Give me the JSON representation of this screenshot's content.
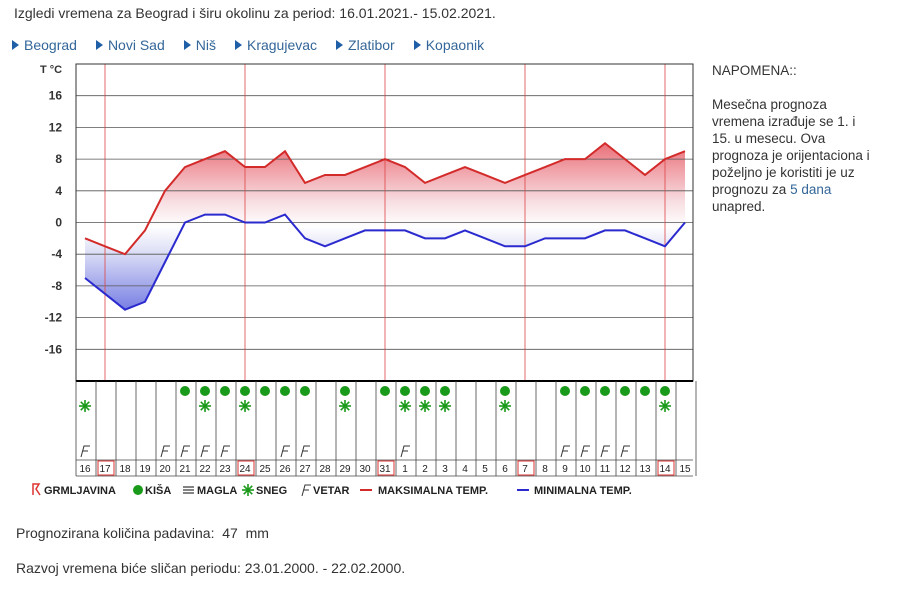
{
  "header": {
    "title": "Izgledi vremena za Beograd i širu okolinu za period: 16.01.2021.- 15.02.2021."
  },
  "cities": [
    {
      "label": "Beograd"
    },
    {
      "label": "Novi Sad"
    },
    {
      "label": "Niš"
    },
    {
      "label": "Kragujevac"
    },
    {
      "label": "Zlatibor"
    },
    {
      "label": "Kopaonik"
    }
  ],
  "note": {
    "heading": "NAPOMENA::",
    "text_before": "Mesečna prognoza vremena izrađuje se 1. i 15. u mesecu. Ova prognoza je orijentaciona i poželjno je koristiti je uz prognozu za ",
    "link": "5 dana",
    "text_after": " unapred."
  },
  "legend": {
    "storm": "GRMLJAVINA",
    "rain": "KIŠA",
    "fog": "MAGLA",
    "snow": "SNEG",
    "wind": "VETAR",
    "max": "MAKSIMALNA TEMP.",
    "min": "MINIMALNA TEMP."
  },
  "colors": {
    "max": "#d32a2a",
    "min": "#2a2acf",
    "rain": "#1a9a1a",
    "snow": "#1a9a1a",
    "grid": "#555555",
    "axis": "#000000"
  },
  "chart_data": {
    "type": "line",
    "ylabel": "T °C",
    "ylim": [
      -20,
      20
    ],
    "yticks": [
      16,
      12,
      8,
      4,
      0,
      -4,
      -8,
      -12,
      -16
    ],
    "days": [
      "16",
      "17",
      "18",
      "19",
      "20",
      "21",
      "22",
      "23",
      "24",
      "25",
      "26",
      "27",
      "28",
      "29",
      "30",
      "31",
      "1",
      "2",
      "3",
      "4",
      "5",
      "6",
      "7",
      "8",
      "9",
      "10",
      "11",
      "12",
      "13",
      "14",
      "15"
    ],
    "highlighted_days": [
      "17",
      "24",
      "31",
      "7",
      "14"
    ],
    "series": [
      {
        "name": "MAKSIMALNA TEMP.",
        "values": [
          -2,
          -3,
          -4,
          -1,
          4,
          7,
          8,
          9,
          7,
          7,
          9,
          5,
          6,
          6,
          7,
          8,
          7,
          5,
          6,
          7,
          6,
          5,
          6,
          7,
          8,
          8,
          10,
          8,
          6,
          8,
          9
        ]
      },
      {
        "name": "MINIMALNA TEMP.",
        "values": [
          -7,
          -9,
          -11,
          -10,
          -5,
          0,
          1,
          1,
          0,
          0,
          1,
          -2,
          -3,
          -2,
          -1,
          -1,
          -1,
          -2,
          -2,
          -1,
          -2,
          -3,
          -3,
          -2,
          -2,
          -2,
          -1,
          -1,
          -2,
          -3,
          0
        ]
      }
    ],
    "weather_symbols": {
      "rain": [
        "21",
        "22",
        "23",
        "24",
        "25",
        "26",
        "27",
        "29",
        "31",
        "1",
        "2",
        "3",
        "6",
        "9",
        "10",
        "11",
        "12",
        "13",
        "14"
      ],
      "snow": [
        "16",
        "22",
        "24",
        "29",
        "1",
        "2",
        "3",
        "6",
        "14"
      ],
      "wind": [
        "16",
        "20",
        "21",
        "22",
        "23",
        "26",
        "27",
        "1",
        "9",
        "10",
        "11",
        "12"
      ]
    }
  },
  "footer": {
    "precip": "Prognozirana količina padavina:  47  mm",
    "similar": "Razvoj vremena biće sličan periodu: 23.01.2000. - 22.02.2000."
  }
}
